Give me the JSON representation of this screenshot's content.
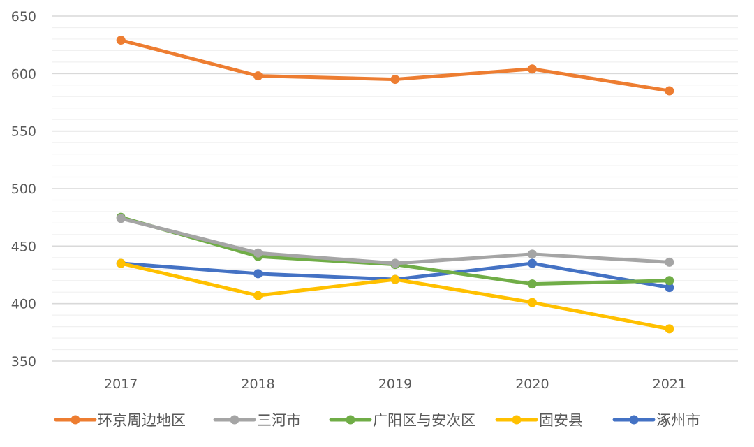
{
  "chart_data": {
    "type": "line",
    "categories": [
      "2017",
      "2018",
      "2019",
      "2020",
      "2021"
    ],
    "ylim": [
      350,
      650
    ],
    "yticks": [
      350,
      400,
      450,
      500,
      550,
      600,
      650
    ],
    "grid": true,
    "legend_position": "bottom",
    "series": [
      {
        "name": "环京周边地区",
        "color": "#ED7D31",
        "values": [
          629,
          598,
          595,
          604,
          585
        ]
      },
      {
        "name": "三河市",
        "color": "#A5A5A5",
        "values": [
          474,
          444,
          435,
          443,
          436
        ]
      },
      {
        "name": "广阳区与安次区",
        "color": "#70AD47",
        "values": [
          475,
          441,
          434,
          417,
          420
        ]
      },
      {
        "name": "固安县",
        "color": "#FFC000",
        "values": [
          435,
          407,
          421,
          401,
          378
        ]
      },
      {
        "name": "涿州市",
        "color": "#4472C4",
        "values": [
          435,
          426,
          421,
          435,
          414
        ]
      }
    ]
  }
}
